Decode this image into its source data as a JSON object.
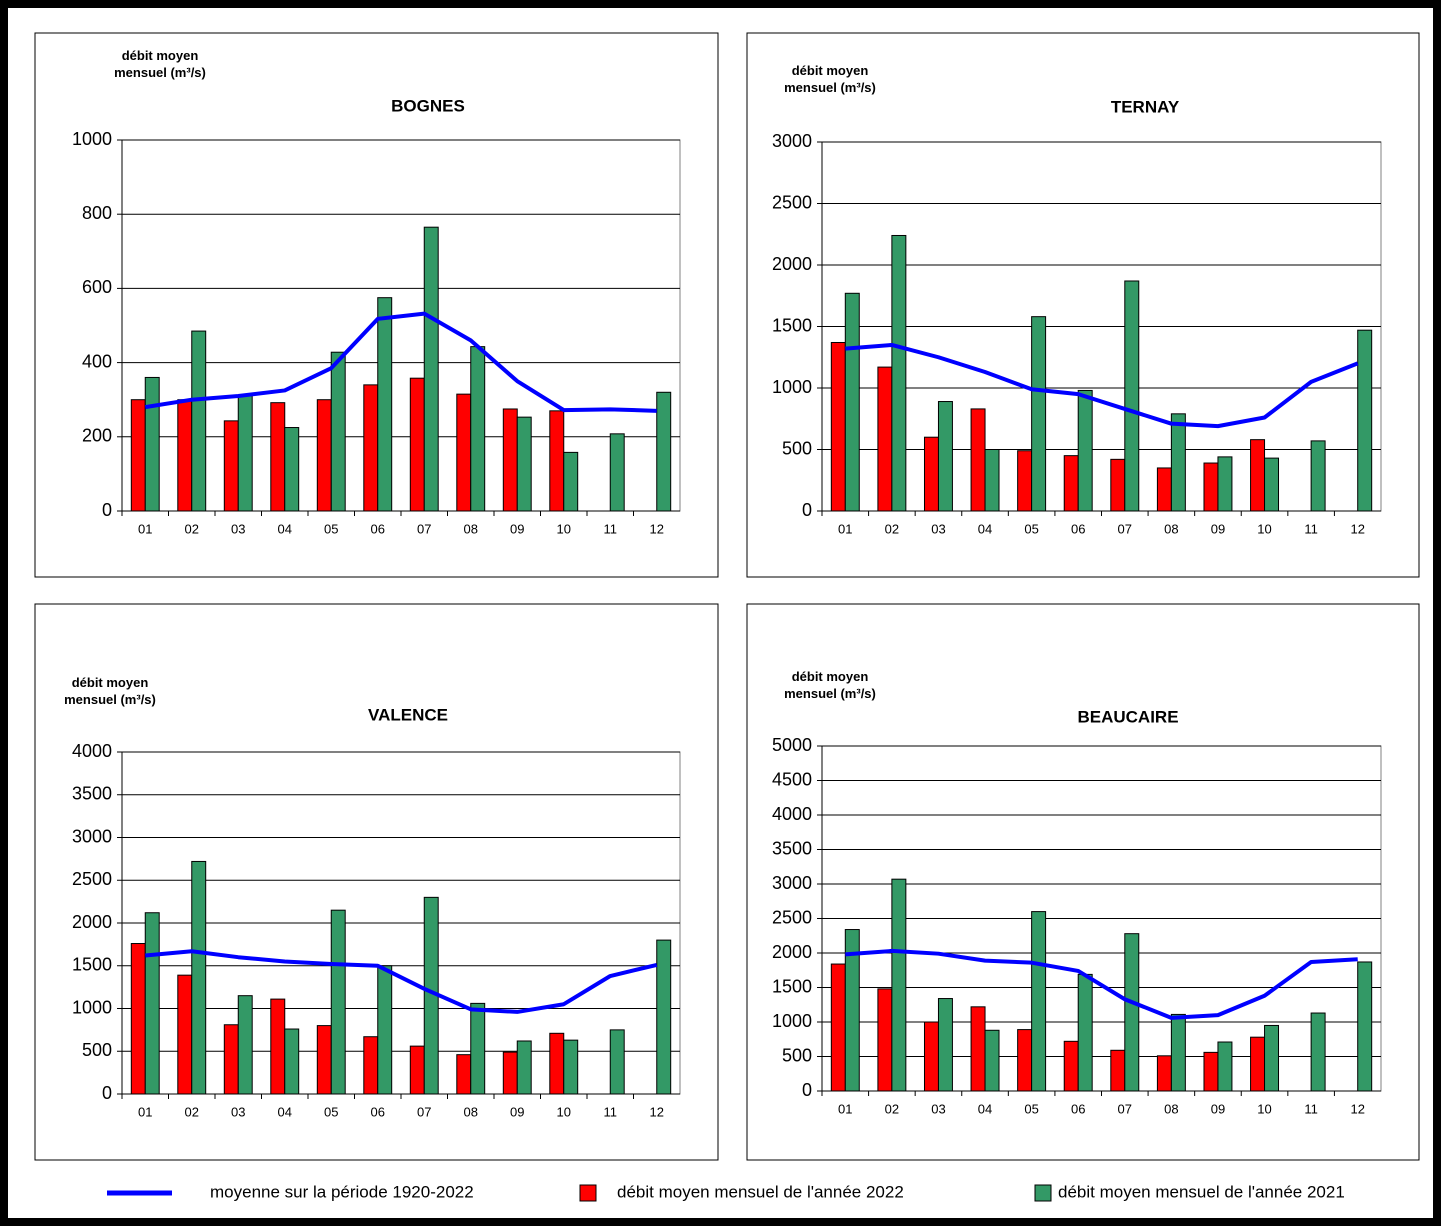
{
  "chart_data": [
    {
      "type": "bar",
      "title": "BOGNES",
      "ylabel": "débit moyen mensuel (m³/s)",
      "categories": [
        "01",
        "02",
        "03",
        "04",
        "05",
        "06",
        "07",
        "08",
        "09",
        "10",
        "11",
        "12"
      ],
      "ylim": [
        0,
        1000
      ],
      "yticks": [
        0,
        200,
        400,
        600,
        800,
        1000
      ],
      "grid": true,
      "series": [
        {
          "name": "moyenne sur la période 1920-2022",
          "type": "line",
          "color": "#0000ff",
          "values": [
            280,
            300,
            310,
            325,
            385,
            518,
            532,
            460,
            350,
            272,
            274,
            270
          ]
        },
        {
          "name": "débit moyen mensuel de l'année 2022",
          "type": "bar",
          "color": "#ff0000",
          "values": [
            300,
            300,
            243,
            292,
            300,
            340,
            358,
            315,
            275,
            270,
            null,
            null
          ]
        },
        {
          "name": "débit moyen mensuel de l'année 2021",
          "type": "bar",
          "color": "#339966",
          "values": [
            360,
            485,
            310,
            225,
            428,
            575,
            765,
            443,
            253,
            158,
            208,
            320
          ]
        }
      ]
    },
    {
      "type": "bar",
      "title": "TERNAY",
      "ylabel": "débit moyen mensuel (m³/s)",
      "categories": [
        "01",
        "02",
        "03",
        "04",
        "05",
        "06",
        "07",
        "08",
        "09",
        "10",
        "11",
        "12"
      ],
      "ylim": [
        0,
        3000
      ],
      "yticks": [
        0,
        500,
        1000,
        1500,
        2000,
        2500,
        3000
      ],
      "grid": true,
      "series": [
        {
          "type": "line",
          "color": "#0000ff",
          "values": [
            1320,
            1350,
            1250,
            1130,
            990,
            950,
            830,
            710,
            690,
            760,
            1050,
            1200
          ]
        },
        {
          "type": "bar",
          "color": "#ff0000",
          "values": [
            1370,
            1170,
            600,
            830,
            490,
            450,
            420,
            350,
            390,
            580,
            null,
            null
          ]
        },
        {
          "type": "bar",
          "color": "#339966",
          "values": [
            1770,
            2240,
            890,
            500,
            1580,
            980,
            1870,
            790,
            440,
            430,
            570,
            1470
          ]
        }
      ]
    },
    {
      "type": "bar",
      "title": "VALENCE",
      "ylabel": "débit moyen mensuel (m³/s)",
      "categories": [
        "01",
        "02",
        "03",
        "04",
        "05",
        "06",
        "07",
        "08",
        "09",
        "10",
        "11",
        "12"
      ],
      "ylim": [
        0,
        4000
      ],
      "yticks": [
        0,
        500,
        1000,
        1500,
        2000,
        2500,
        3000,
        3500,
        4000
      ],
      "grid": true,
      "series": [
        {
          "type": "line",
          "color": "#0000ff",
          "values": [
            1620,
            1670,
            1600,
            1550,
            1520,
            1500,
            1230,
            990,
            960,
            1050,
            1380,
            1510
          ]
        },
        {
          "type": "bar",
          "color": "#ff0000",
          "values": [
            1760,
            1390,
            810,
            1110,
            800,
            670,
            560,
            460,
            490,
            710,
            null,
            null
          ]
        },
        {
          "type": "bar",
          "color": "#339966",
          "values": [
            2120,
            2720,
            1150,
            760,
            2150,
            1500,
            2300,
            1060,
            620,
            630,
            750,
            1800
          ]
        }
      ]
    },
    {
      "type": "bar",
      "title": "BEAUCAIRE",
      "ylabel": "débit moyen mensuel (m³/s)",
      "categories": [
        "01",
        "02",
        "03",
        "04",
        "05",
        "06",
        "07",
        "08",
        "09",
        "10",
        "11",
        "12"
      ],
      "ylim": [
        0,
        5000
      ],
      "yticks": [
        0,
        500,
        1000,
        1500,
        2000,
        2500,
        3000,
        3500,
        4000,
        4500,
        5000
      ],
      "grid": true,
      "series": [
        {
          "type": "line",
          "color": "#0000ff",
          "values": [
            1980,
            2030,
            1990,
            1890,
            1860,
            1740,
            1330,
            1060,
            1100,
            1380,
            1870,
            1910
          ]
        },
        {
          "type": "bar",
          "color": "#ff0000",
          "values": [
            1840,
            1480,
            1000,
            1220,
            890,
            720,
            590,
            510,
            560,
            780,
            null,
            null
          ]
        },
        {
          "type": "bar",
          "color": "#339966",
          "values": [
            2340,
            3070,
            1340,
            880,
            2600,
            1690,
            2280,
            1110,
            710,
            950,
            1130,
            1870
          ]
        }
      ]
    }
  ]
}
